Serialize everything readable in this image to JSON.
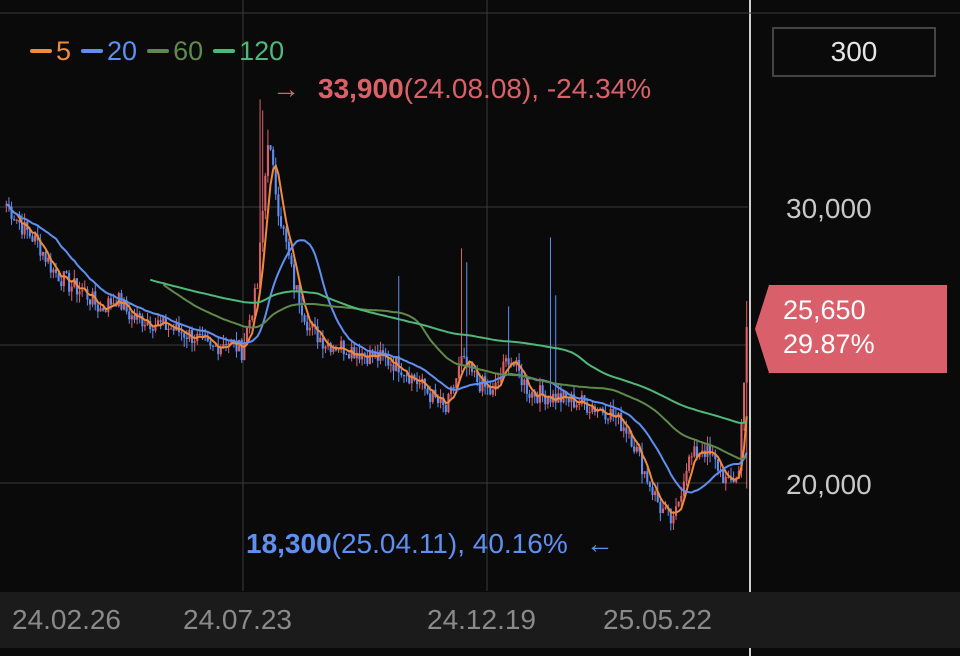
{
  "chart_data": {
    "type": "candlestick",
    "y_axis": {
      "ticks": [
        "30,000",
        "20,000"
      ],
      "range": [
        15500,
        35500
      ],
      "position": "right"
    },
    "x_axis": {
      "ticks": [
        "24.02.26",
        "24.07.23",
        "24.12.19",
        "25.05.22"
      ]
    },
    "legend": [
      {
        "label": "5",
        "color": "#f08a3c"
      },
      {
        "label": "20",
        "color": "#5f8ff0"
      },
      {
        "label": "60",
        "color": "#5e8a4a"
      },
      {
        "label": "120",
        "color": "#4fb87a"
      }
    ],
    "grid": true,
    "period_label": "300",
    "high_marker": {
      "arrow": "→",
      "price": "33,900",
      "detail": "(24.08.08), -24.34%",
      "date": "24.08.08",
      "value": 33900
    },
    "low_marker": {
      "arrow": "←",
      "price": "18,300",
      "detail": "(25.04.11), 40.16%",
      "date": "25.04.11",
      "value": 18300
    },
    "current": {
      "price": "25,650",
      "change": "29.87%",
      "value": 25650
    },
    "colors": {
      "up": "#d9626a",
      "down": "#5f8ff0",
      "background": "#0a0a0a",
      "grid": "#3a3a3a"
    },
    "close_keypoints": [
      [
        0,
        30100
      ],
      [
        6,
        29300
      ],
      [
        12,
        28700
      ],
      [
        18,
        27700
      ],
      [
        24,
        27200
      ],
      [
        30,
        26900
      ],
      [
        36,
        26300
      ],
      [
        42,
        26700
      ],
      [
        48,
        26000
      ],
      [
        54,
        25900
      ],
      [
        60,
        25700
      ],
      [
        66,
        25500
      ],
      [
        72,
        25300
      ],
      [
        78,
        24800
      ],
      [
        84,
        25200
      ],
      [
        90,
        24800
      ],
      [
        96,
        27100
      ],
      [
        100,
        32500
      ],
      [
        104,
        30000
      ],
      [
        110,
        27200
      ],
      [
        116,
        25600
      ],
      [
        122,
        25100
      ],
      [
        130,
        24900
      ],
      [
        140,
        24600
      ],
      [
        150,
        24300
      ],
      [
        160,
        23400
      ],
      [
        168,
        22600
      ],
      [
        174,
        24400
      ],
      [
        180,
        23700
      ],
      [
        186,
        23200
      ],
      [
        192,
        24600
      ],
      [
        200,
        23300
      ],
      [
        210,
        23100
      ],
      [
        220,
        22900
      ],
      [
        230,
        22600
      ],
      [
        238,
        21900
      ],
      [
        244,
        20400
      ],
      [
        250,
        19100
      ],
      [
        255,
        18500
      ],
      [
        260,
        20700
      ],
      [
        266,
        21300
      ],
      [
        272,
        20600
      ],
      [
        276,
        19900
      ],
      [
        280,
        20400
      ],
      [
        283,
        25650
      ]
    ],
    "ma_start": {
      "60": 60,
      "120": 55
    }
  }
}
